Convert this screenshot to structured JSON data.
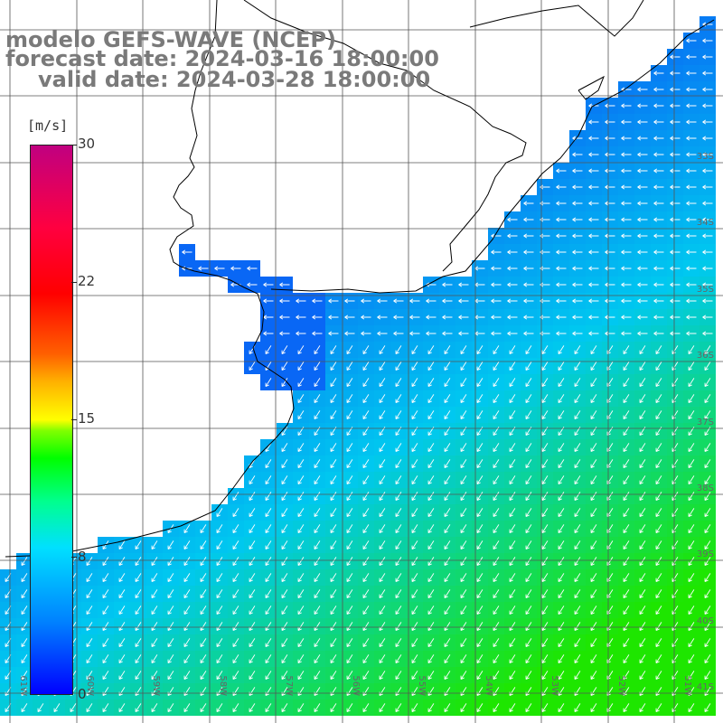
{
  "title": {
    "line1": "modelo GEFS-WAVE (NCEP)",
    "line2": "forecast date: 2024-03-16 18:00:00",
    "line3": "valid date: 2024-03-28 18:00:00"
  },
  "colorbar": {
    "unit": "[m/s]",
    "min": 0,
    "max": 30,
    "tick_labels": [
      "30",
      "22",
      "15",
      "8",
      "0"
    ],
    "tick_values": [
      30,
      22,
      15,
      8,
      0
    ]
  },
  "grid": {
    "lat_labels": [
      "33S",
      "34S",
      "35S",
      "36S",
      "37S",
      "38S",
      "39S",
      "40S",
      "41S"
    ],
    "lon_labels": [
      "61W",
      "60W",
      "59W",
      "58W",
      "57W",
      "56W",
      "55W",
      "54W",
      "53W",
      "52W",
      "51W"
    ]
  },
  "colors": {
    "land": "#ffffff",
    "coast": "#000000",
    "grid": "#555555",
    "arrows": "#ffffff",
    "low_wind": "#0a5cf5",
    "mid_wind": "#00c8f0",
    "high_wind": "#1ee600"
  }
}
